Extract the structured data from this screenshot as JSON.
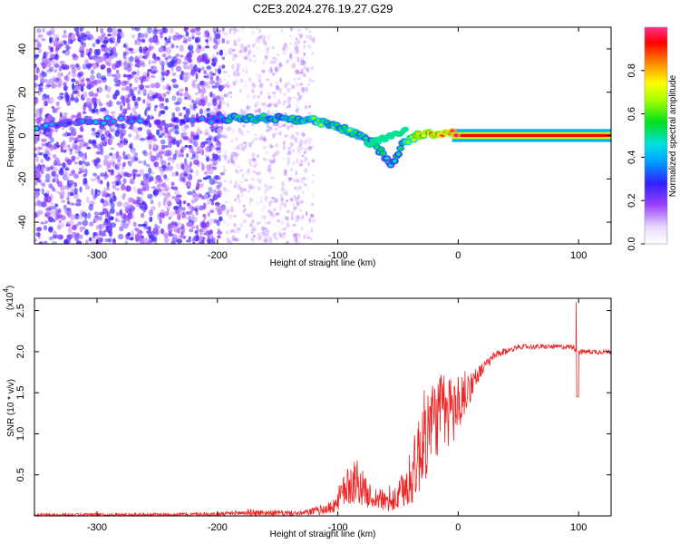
{
  "title": "C2E3.2024.276.19.27.G29",
  "chart_data": [
    {
      "type": "heatmap",
      "name": "spectrogram",
      "xlabel": "Height of straight line (km)",
      "ylabel": "Frequency (Hz)",
      "xlim": [
        -352,
        127
      ],
      "ylim": [
        -50,
        50
      ],
      "xticks": [
        -300,
        -200,
        -100,
        0,
        100
      ],
      "xtick_labels": [
        "-300",
        "-200",
        "-100",
        "0",
        "100"
      ],
      "yticks": [
        -40,
        -20,
        0,
        20,
        40
      ],
      "ytick_labels": [
        "-40",
        "-20",
        "0",
        "20",
        "40"
      ],
      "colorbar": {
        "label": "Normalized spectral amplitude",
        "range": [
          0,
          1
        ],
        "ticks": [
          0.0,
          0.2,
          0.4,
          0.6,
          0.8
        ],
        "tick_labels": [
          "0.0",
          "0.2",
          "0.4",
          "0.6",
          "0.8"
        ]
      },
      "ridge": {
        "description_points": [
          {
            "x": -345,
            "f": 3,
            "amp": 0.4
          },
          {
            "x": -320,
            "f": 7,
            "amp": 0.3
          },
          {
            "x": -300,
            "f": 7,
            "amp": 0.45
          },
          {
            "x": -250,
            "f": 7,
            "amp": 0.3
          },
          {
            "x": -200,
            "f": 7,
            "amp": 0.35
          },
          {
            "x": -190,
            "f": 8,
            "amp": 0.55
          },
          {
            "x": -150,
            "f": 8,
            "amp": 0.55
          },
          {
            "x": -120,
            "f": 7,
            "amp": 0.6
          },
          {
            "x": -90,
            "f": 2,
            "amp": 0.6
          },
          {
            "x": -70,
            "f": -4,
            "amp": 0.55
          },
          {
            "x": -55,
            "f": -13,
            "amp": 0.45
          },
          {
            "x": -45,
            "f": -3,
            "amp": 0.6
          },
          {
            "x": -30,
            "f": 1,
            "amp": 0.8
          },
          {
            "x": -10,
            "f": 1,
            "amp": 0.9
          },
          {
            "x": 0,
            "f": 1,
            "amp": 0.95
          },
          {
            "x": 50,
            "f": 0,
            "amp": 0.95
          },
          {
            "x": 100,
            "f": 0,
            "amp": 0.95
          },
          {
            "x": 127,
            "f": 0,
            "amp": 0.95
          }
        ]
      }
    },
    {
      "type": "line",
      "name": "snr",
      "xlabel": "Height of straight line (km)",
      "ylabel": "SNR (10 * v/v)",
      "scale_label": "(x10",
      "scale_exp": "4",
      "scale_close": ")",
      "xlim": [
        -352,
        127
      ],
      "ylim": [
        0,
        2.65
      ],
      "xticks": [
        -300,
        -200,
        -100,
        0,
        100
      ],
      "xtick_labels": [
        "-300",
        "-200",
        "-100",
        "0",
        "100"
      ],
      "yticks": [
        0.5,
        1.0,
        1.5,
        2.0,
        2.5
      ],
      "ytick_labels": [
        "0.5",
        "1.0",
        "1.5",
        "2.0",
        "2.5"
      ],
      "color": "#ee2222",
      "series": [
        {
          "name": "SNR",
          "envelope": [
            {
              "x": -352,
              "y": 0.01,
              "noise": 0.02
            },
            {
              "x": -200,
              "y": 0.02,
              "noise": 0.02
            },
            {
              "x": -175,
              "y": 0.04,
              "noise": 0.04
            },
            {
              "x": -130,
              "y": 0.03,
              "noise": 0.03
            },
            {
              "x": -105,
              "y": 0.1,
              "noise": 0.08
            },
            {
              "x": -95,
              "y": 0.3,
              "noise": 0.2
            },
            {
              "x": -85,
              "y": 0.45,
              "noise": 0.3
            },
            {
              "x": -75,
              "y": 0.25,
              "noise": 0.15
            },
            {
              "x": -55,
              "y": 0.15,
              "noise": 0.12
            },
            {
              "x": -40,
              "y": 0.4,
              "noise": 0.3
            },
            {
              "x": -30,
              "y": 0.9,
              "noise": 0.6
            },
            {
              "x": -20,
              "y": 1.2,
              "noise": 0.5
            },
            {
              "x": -10,
              "y": 1.25,
              "noise": 0.5
            },
            {
              "x": 0,
              "y": 1.35,
              "noise": 0.4
            },
            {
              "x": 15,
              "y": 1.7,
              "noise": 0.1
            },
            {
              "x": 30,
              "y": 1.95,
              "noise": 0.05
            },
            {
              "x": 50,
              "y": 2.06,
              "noise": 0.03
            },
            {
              "x": 95,
              "y": 2.06,
              "noise": 0.03
            },
            {
              "x": 100,
              "y": 2.0,
              "noise": 0.03
            },
            {
              "x": 127,
              "y": 2.0,
              "noise": 0.03
            }
          ]
        }
      ]
    }
  ]
}
